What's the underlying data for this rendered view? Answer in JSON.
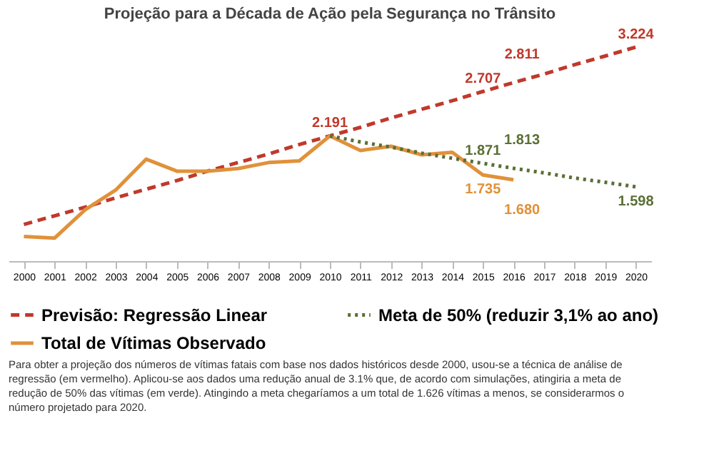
{
  "chart_data": {
    "type": "line",
    "title": "Projeção para a Década de Ação pela Segurança no Trânsito",
    "categories": [
      "2000",
      "2001",
      "2002",
      "2003",
      "2004",
      "2005",
      "2006",
      "2007",
      "2008",
      "2009",
      "2010",
      "2011",
      "2012",
      "2013",
      "2014",
      "2015",
      "2016",
      "2017",
      "2018",
      "2019",
      "2020"
    ],
    "tick_labels": "x",
    "legend": "bottom",
    "series": [
      {
        "name": "Previsão: Regressão Linear",
        "color": "#c0392b",
        "line_style": "dashed",
        "values": [
          1.16,
          1.26,
          1.36,
          1.47,
          1.57,
          1.67,
          1.78,
          1.88,
          1.98,
          2.09,
          2.191,
          2.29,
          2.4,
          2.5,
          2.6,
          2.707,
          2.811,
          2.91,
          3.02,
          3.12,
          3.224
        ],
        "value_labels": [
          null,
          null,
          null,
          null,
          null,
          null,
          null,
          null,
          null,
          null,
          "2.191",
          null,
          null,
          null,
          null,
          "2.707",
          "2.811",
          null,
          null,
          null,
          "3.224"
        ]
      },
      {
        "name": "Total de Vítimas Observado",
        "color": "#e0913a",
        "line_style": "solid",
        "values": [
          1.02,
          1.0,
          1.33,
          1.56,
          1.92,
          1.78,
          1.78,
          1.81,
          1.88,
          1.9,
          2.19,
          2.02,
          2.07,
          1.97,
          2.0,
          1.735,
          1.68,
          null,
          null,
          null,
          null
        ],
        "value_labels": [
          null,
          null,
          null,
          null,
          null,
          null,
          null,
          null,
          null,
          null,
          null,
          null,
          null,
          null,
          null,
          "1.735",
          "1.680",
          null,
          null,
          null,
          null
        ]
      },
      {
        "name": "Meta de 50% (reduzir 3,1% ao ano)",
        "color": "#5b6f35",
        "line_style": "dotted",
        "values": [
          null,
          null,
          null,
          null,
          null,
          null,
          null,
          null,
          null,
          null,
          2.19,
          2.12,
          2.06,
          1.99,
          1.93,
          1.871,
          1.813,
          1.76,
          1.7,
          1.65,
          1.598
        ],
        "value_labels": [
          null,
          null,
          null,
          null,
          null,
          null,
          null,
          null,
          null,
          null,
          null,
          null,
          null,
          null,
          null,
          "1.871",
          "1.813",
          null,
          null,
          null,
          "1.598"
        ]
      }
    ],
    "annotations": [
      "Para obter a projeção dos números de vítimas fatais com base nos dados históricos desde 2000, usou-se a técnica de análise de regressão (em vermelho). Aplicou-se aos dados uma redução anual de 3.1% que, de acordo com simulações, atingiria a meta de redução de 50% das vítimas (em verde). Atingindo a meta chegaríamos a um total de 1.626 vítimas a menos, se considerarmos o número projetado para 2020."
    ]
  }
}
